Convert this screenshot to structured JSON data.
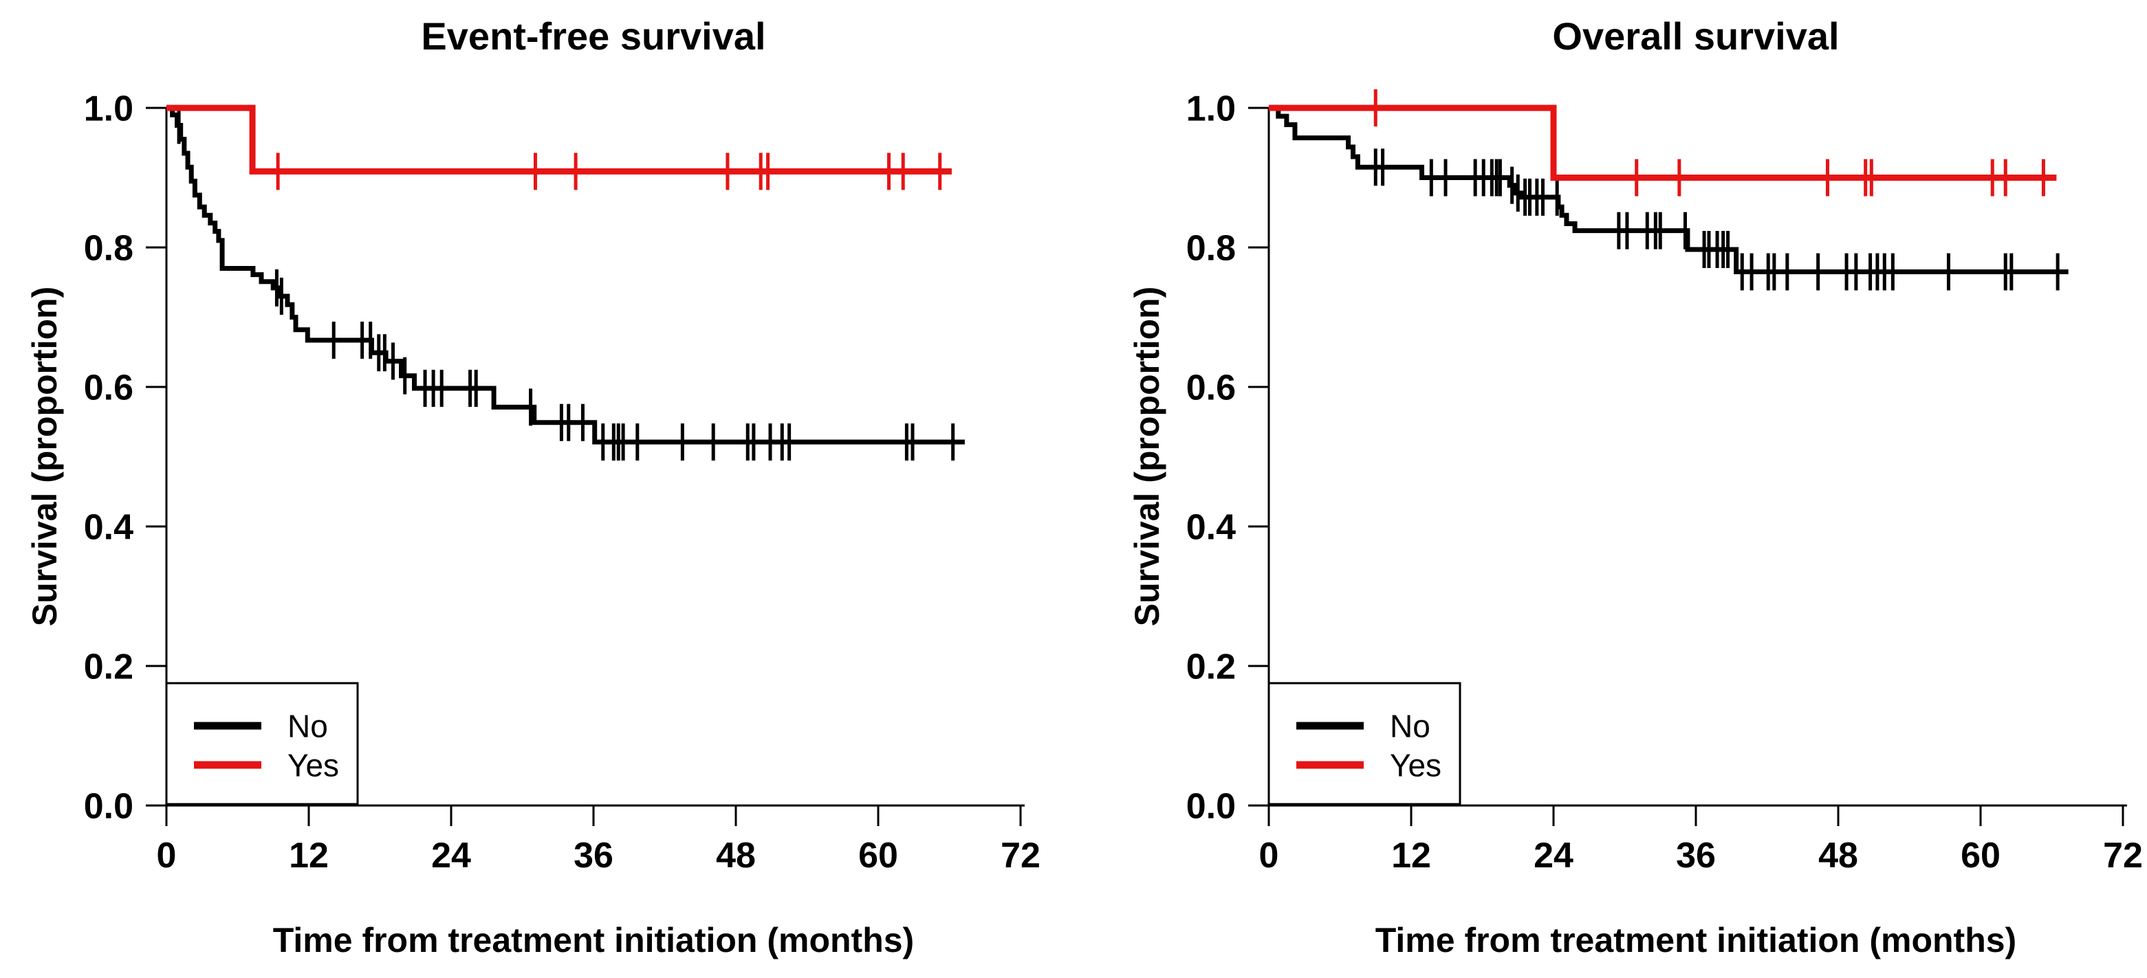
{
  "figure": {
    "background": "#ffffff",
    "colors": {
      "no": "#000000",
      "yes": "#e61414"
    },
    "shared_x_label": "Time from treatment initiation (months)",
    "shared_y_label": "Survival (proportion)",
    "legend": {
      "position": "bottom-left",
      "items": [
        {
          "label": "No",
          "color_key": "no"
        },
        {
          "label": "Yes",
          "color_key": "yes"
        }
      ]
    }
  },
  "chart_data": [
    {
      "type": "line",
      "subtype": "kaplan-meier-step",
      "title": "Event-free survival",
      "xlabel": "Time from treatment initiation (months)",
      "ylabel": "Survival (proportion)",
      "xlim": [
        0,
        72
      ],
      "ylim": [
        0.0,
        1.0
      ],
      "x_ticks": [
        0,
        12,
        24,
        36,
        48,
        60,
        72
      ],
      "y_ticks": [
        "0.0",
        "0.2",
        "0.4",
        "0.6",
        "0.8",
        "1.0"
      ],
      "grid": false,
      "legend_position": "bottom-left",
      "series": [
        {
          "name": "No",
          "color_key": "no",
          "steps": [
            [
              0,
              1.0
            ],
            [
              0.5,
              0.99
            ],
            [
              0.9,
              0.975
            ],
            [
              1.2,
              0.955
            ],
            [
              1.5,
              0.935
            ],
            [
              1.8,
              0.915
            ],
            [
              2.1,
              0.895
            ],
            [
              2.4,
              0.875
            ],
            [
              2.8,
              0.858
            ],
            [
              3.2,
              0.846
            ],
            [
              3.7,
              0.835
            ],
            [
              4.1,
              0.823
            ],
            [
              4.4,
              0.81
            ],
            [
              4.7,
              0.77
            ],
            [
              7.3,
              0.761
            ],
            [
              8.0,
              0.751
            ],
            [
              9.0,
              0.742
            ],
            [
              9.6,
              0.73
            ],
            [
              10.2,
              0.718
            ],
            [
              10.6,
              0.7
            ],
            [
              10.9,
              0.682
            ],
            [
              11.9,
              0.667
            ],
            [
              17.3,
              0.649
            ],
            [
              18.5,
              0.637
            ],
            [
              19.8,
              0.616
            ],
            [
              20.9,
              0.598
            ],
            [
              27.6,
              0.571
            ],
            [
              31.0,
              0.549
            ],
            [
              36.1,
              0.521
            ]
          ],
          "end_t": 67.3,
          "censor_t": [
            1.05,
            9.3,
            9.7,
            14.1,
            16.5,
            17.2,
            17.9,
            18.4,
            19.1,
            20.1,
            21.8,
            22.5,
            23.2,
            25.6,
            26.1,
            30.7,
            33.3,
            33.9,
            35.1,
            36.8,
            37.7,
            38.1,
            38.5,
            39.7,
            43.5,
            46.1,
            49.0,
            49.5,
            50.9,
            51.9,
            52.5,
            62.4,
            62.9,
            66.3
          ]
        },
        {
          "name": "Yes",
          "color_key": "yes",
          "steps": [
            [
              0,
              1.0
            ],
            [
              7.25,
              0.909
            ]
          ],
          "end_t": 66.2,
          "censor_t": [
            9.4,
            31.1,
            34.5,
            47.3,
            50.1,
            50.7,
            60.9,
            62.1,
            65.2
          ]
        }
      ]
    },
    {
      "type": "line",
      "subtype": "kaplan-meier-step",
      "title": "Overall survival",
      "xlabel": "Time from treatment initiation (months)",
      "ylabel": "Survival (proportion)",
      "xlim": [
        0,
        72
      ],
      "ylim": [
        0.0,
        1.0
      ],
      "x_ticks": [
        0,
        12,
        24,
        36,
        48,
        60,
        72
      ],
      "y_ticks": [
        "0.0",
        "0.2",
        "0.4",
        "0.6",
        "0.8",
        "1.0"
      ],
      "grid": false,
      "legend_position": "bottom-left",
      "series": [
        {
          "name": "No",
          "color_key": "no",
          "steps": [
            [
              0,
              1.0
            ],
            [
              0.8,
              0.988
            ],
            [
              1.5,
              0.976
            ],
            [
              2.2,
              0.957
            ],
            [
              6.7,
              0.944
            ],
            [
              7.1,
              0.93
            ],
            [
              7.5,
              0.915
            ],
            [
              12.9,
              0.9
            ],
            [
              20.3,
              0.889
            ],
            [
              20.8,
              0.878
            ],
            [
              21.3,
              0.872
            ],
            [
              24.4,
              0.858
            ],
            [
              24.7,
              0.846
            ],
            [
              25.1,
              0.834
            ],
            [
              25.8,
              0.824
            ],
            [
              35.3,
              0.797
            ],
            [
              39.4,
              0.765
            ]
          ],
          "end_t": 67.4,
          "censor_t": [
            9.0,
            9.6,
            13.7,
            14.9,
            17.4,
            18.1,
            18.8,
            19.2,
            19.5,
            20.5,
            21.0,
            21.6,
            22.0,
            22.6,
            23.1,
            24.3,
            29.5,
            30.2,
            31.9,
            32.6,
            33.0,
            35.1,
            36.7,
            37.1,
            37.8,
            38.3,
            38.7,
            39.9,
            40.7,
            42.1,
            42.6,
            43.7,
            46.3,
            48.7,
            49.5,
            50.7,
            51.3,
            51.9,
            52.6,
            57.3,
            62.1,
            62.6,
            66.5
          ]
        },
        {
          "name": "Yes",
          "color_key": "yes",
          "steps": [
            [
              0,
              1.0
            ],
            [
              24.0,
              0.9
            ]
          ],
          "end_t": 66.4,
          "censor_t": [
            9.0,
            31.0,
            34.6,
            47.1,
            50.3,
            50.8,
            61.0,
            62.1,
            65.3
          ]
        }
      ]
    }
  ]
}
